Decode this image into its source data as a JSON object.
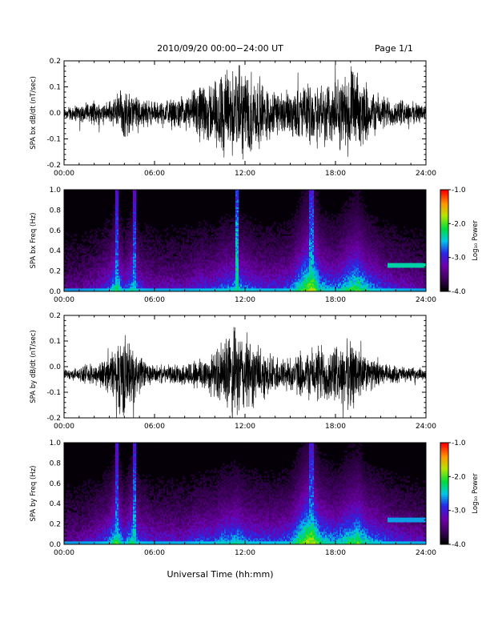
{
  "header": {
    "title": "2010/09/20  00:00−24:00 UT",
    "page": "Page 1/1"
  },
  "x_axis_title": "Universal Time (hh:mm)",
  "chart_data": [
    {
      "type": "line",
      "ylabel": "SPA bx dB/dt (nT/sec)",
      "xlim": [
        0,
        24
      ],
      "ylim": [
        -0.2,
        0.2
      ],
      "xticks": [
        "00:00",
        "06:00",
        "12:00",
        "18:00",
        "24:00"
      ],
      "yticks": [
        "-0.2",
        "-0.1",
        "0.0",
        "0.1",
        "0.2"
      ],
      "series": [
        {
          "hours": [
            0,
            1,
            2,
            3,
            3.8,
            4.6,
            5.4,
            6,
            7,
            8,
            9,
            10,
            10.5,
            11,
            11.5,
            12,
            12.5,
            13,
            14,
            15,
            16,
            16.5,
            17,
            18,
            19,
            19.5,
            20,
            21,
            22,
            23,
            24
          ],
          "envelope": [
            0.03,
            0.04,
            0.05,
            0.05,
            0.12,
            0.08,
            0.06,
            0.05,
            0.06,
            0.07,
            0.12,
            0.15,
            0.2,
            0.2,
            0.2,
            0.2,
            0.18,
            0.15,
            0.1,
            0.1,
            0.12,
            0.14,
            0.15,
            0.14,
            0.2,
            0.16,
            0.12,
            0.08,
            0.06,
            0.05,
            0.04
          ],
          "offset": 0.0
        }
      ]
    },
    {
      "type": "heatmap",
      "ylabel": "SPA bx Freq (Hz)",
      "xlim": [
        0,
        24
      ],
      "ylim": [
        0,
        1
      ],
      "xticks": [
        "00:00",
        "06:00",
        "12:00",
        "18:00",
        "24:00"
      ],
      "yticks": [
        "0.0",
        "0.2",
        "0.4",
        "0.6",
        "0.8",
        "1.0"
      ],
      "colorbar": {
        "label": "Log₁₀ Power",
        "range": [
          -4,
          -1
        ],
        "ticks": [
          "-1.0",
          "-2.0",
          "-3.0",
          "-4.0"
        ]
      },
      "activity": {
        "hours": [
          0,
          1,
          2,
          3,
          3.5,
          4,
          4.6,
          5,
          6,
          7,
          8,
          9,
          10,
          10.5,
          11,
          11.5,
          12,
          13,
          14,
          15,
          16,
          16.5,
          17,
          18,
          19,
          19.5,
          20,
          21,
          22,
          23,
          24
        ],
        "levels": [
          0.2,
          0.2,
          0.3,
          0.45,
          0.7,
          0.4,
          0.65,
          0.4,
          0.3,
          0.3,
          0.3,
          0.4,
          0.4,
          0.5,
          0.5,
          0.6,
          0.5,
          0.4,
          0.4,
          0.45,
          0.8,
          0.9,
          0.6,
          0.5,
          0.7,
          0.75,
          0.6,
          0.45,
          0.35,
          0.3,
          0.25
        ]
      },
      "lines": [
        {
          "hour": 3.5,
          "strength": 0.8
        },
        {
          "hour": 4.7,
          "strength": 0.8
        },
        {
          "hour": 11.5,
          "strength": 1.0
        },
        {
          "hour": 16.4,
          "strength": 0.9
        }
      ],
      "bands": [
        {
          "freq": 0.26,
          "from": 21.5,
          "to": 24,
          "strength": 0.7
        }
      ]
    },
    {
      "type": "line",
      "ylabel": "SPA by dB/dt (nT/sec)",
      "xlim": [
        0,
        24
      ],
      "ylim": [
        -0.2,
        0.2
      ],
      "xticks": [
        "00:00",
        "06:00",
        "12:00",
        "18:00",
        "24:00"
      ],
      "yticks": [
        "-0.2",
        "-0.1",
        "0.0",
        "0.1",
        "0.2"
      ],
      "series": [
        {
          "hours": [
            0,
            1,
            2,
            3,
            3.8,
            4.6,
            5.4,
            6,
            7,
            8,
            9,
            10,
            10.5,
            11,
            11.5,
            12,
            12.5,
            13,
            14,
            15,
            16,
            16.5,
            17,
            18,
            19,
            19.5,
            20,
            21,
            22,
            23,
            24
          ],
          "envelope": [
            0.02,
            0.03,
            0.05,
            0.08,
            0.2,
            0.12,
            0.06,
            0.04,
            0.04,
            0.05,
            0.08,
            0.1,
            0.15,
            0.2,
            0.2,
            0.18,
            0.15,
            0.12,
            0.08,
            0.08,
            0.1,
            0.12,
            0.14,
            0.12,
            0.16,
            0.14,
            0.08,
            0.05,
            0.04,
            0.03,
            0.02
          ],
          "offset": -0.03
        }
      ]
    },
    {
      "type": "heatmap",
      "ylabel": "SPA by Freq (Hz)",
      "xlim": [
        0,
        24
      ],
      "ylim": [
        0,
        1
      ],
      "xticks": [
        "00:00",
        "06:00",
        "12:00",
        "18:00",
        "24:00"
      ],
      "yticks": [
        "0.0",
        "0.2",
        "0.4",
        "0.6",
        "0.8",
        "1.0"
      ],
      "colorbar": {
        "label": "Log₁₀ Power",
        "range": [
          -4,
          -1
        ],
        "ticks": [
          "-1.0",
          "-2.0",
          "-3.0",
          "-4.0"
        ]
      },
      "activity": {
        "hours": [
          0,
          1,
          2,
          3,
          3.5,
          4,
          4.6,
          5,
          6,
          7,
          8,
          9,
          10,
          10.5,
          11,
          11.5,
          12,
          13,
          14,
          15,
          16,
          16.5,
          17,
          18,
          19,
          19.5,
          20,
          21,
          22,
          23,
          24
        ],
        "levels": [
          0.25,
          0.25,
          0.35,
          0.5,
          0.75,
          0.45,
          0.7,
          0.45,
          0.35,
          0.35,
          0.35,
          0.45,
          0.45,
          0.55,
          0.55,
          0.6,
          0.5,
          0.45,
          0.45,
          0.5,
          0.85,
          0.9,
          0.65,
          0.55,
          0.7,
          0.75,
          0.6,
          0.5,
          0.4,
          0.35,
          0.3
        ]
      },
      "lines": [
        {
          "hour": 3.5,
          "strength": 0.8
        },
        {
          "hour": 4.7,
          "strength": 0.85
        },
        {
          "hour": 16.4,
          "strength": 0.85
        }
      ],
      "bands": [
        {
          "freq": 0.24,
          "from": 21.5,
          "to": 24,
          "strength": 0.6
        }
      ]
    }
  ]
}
